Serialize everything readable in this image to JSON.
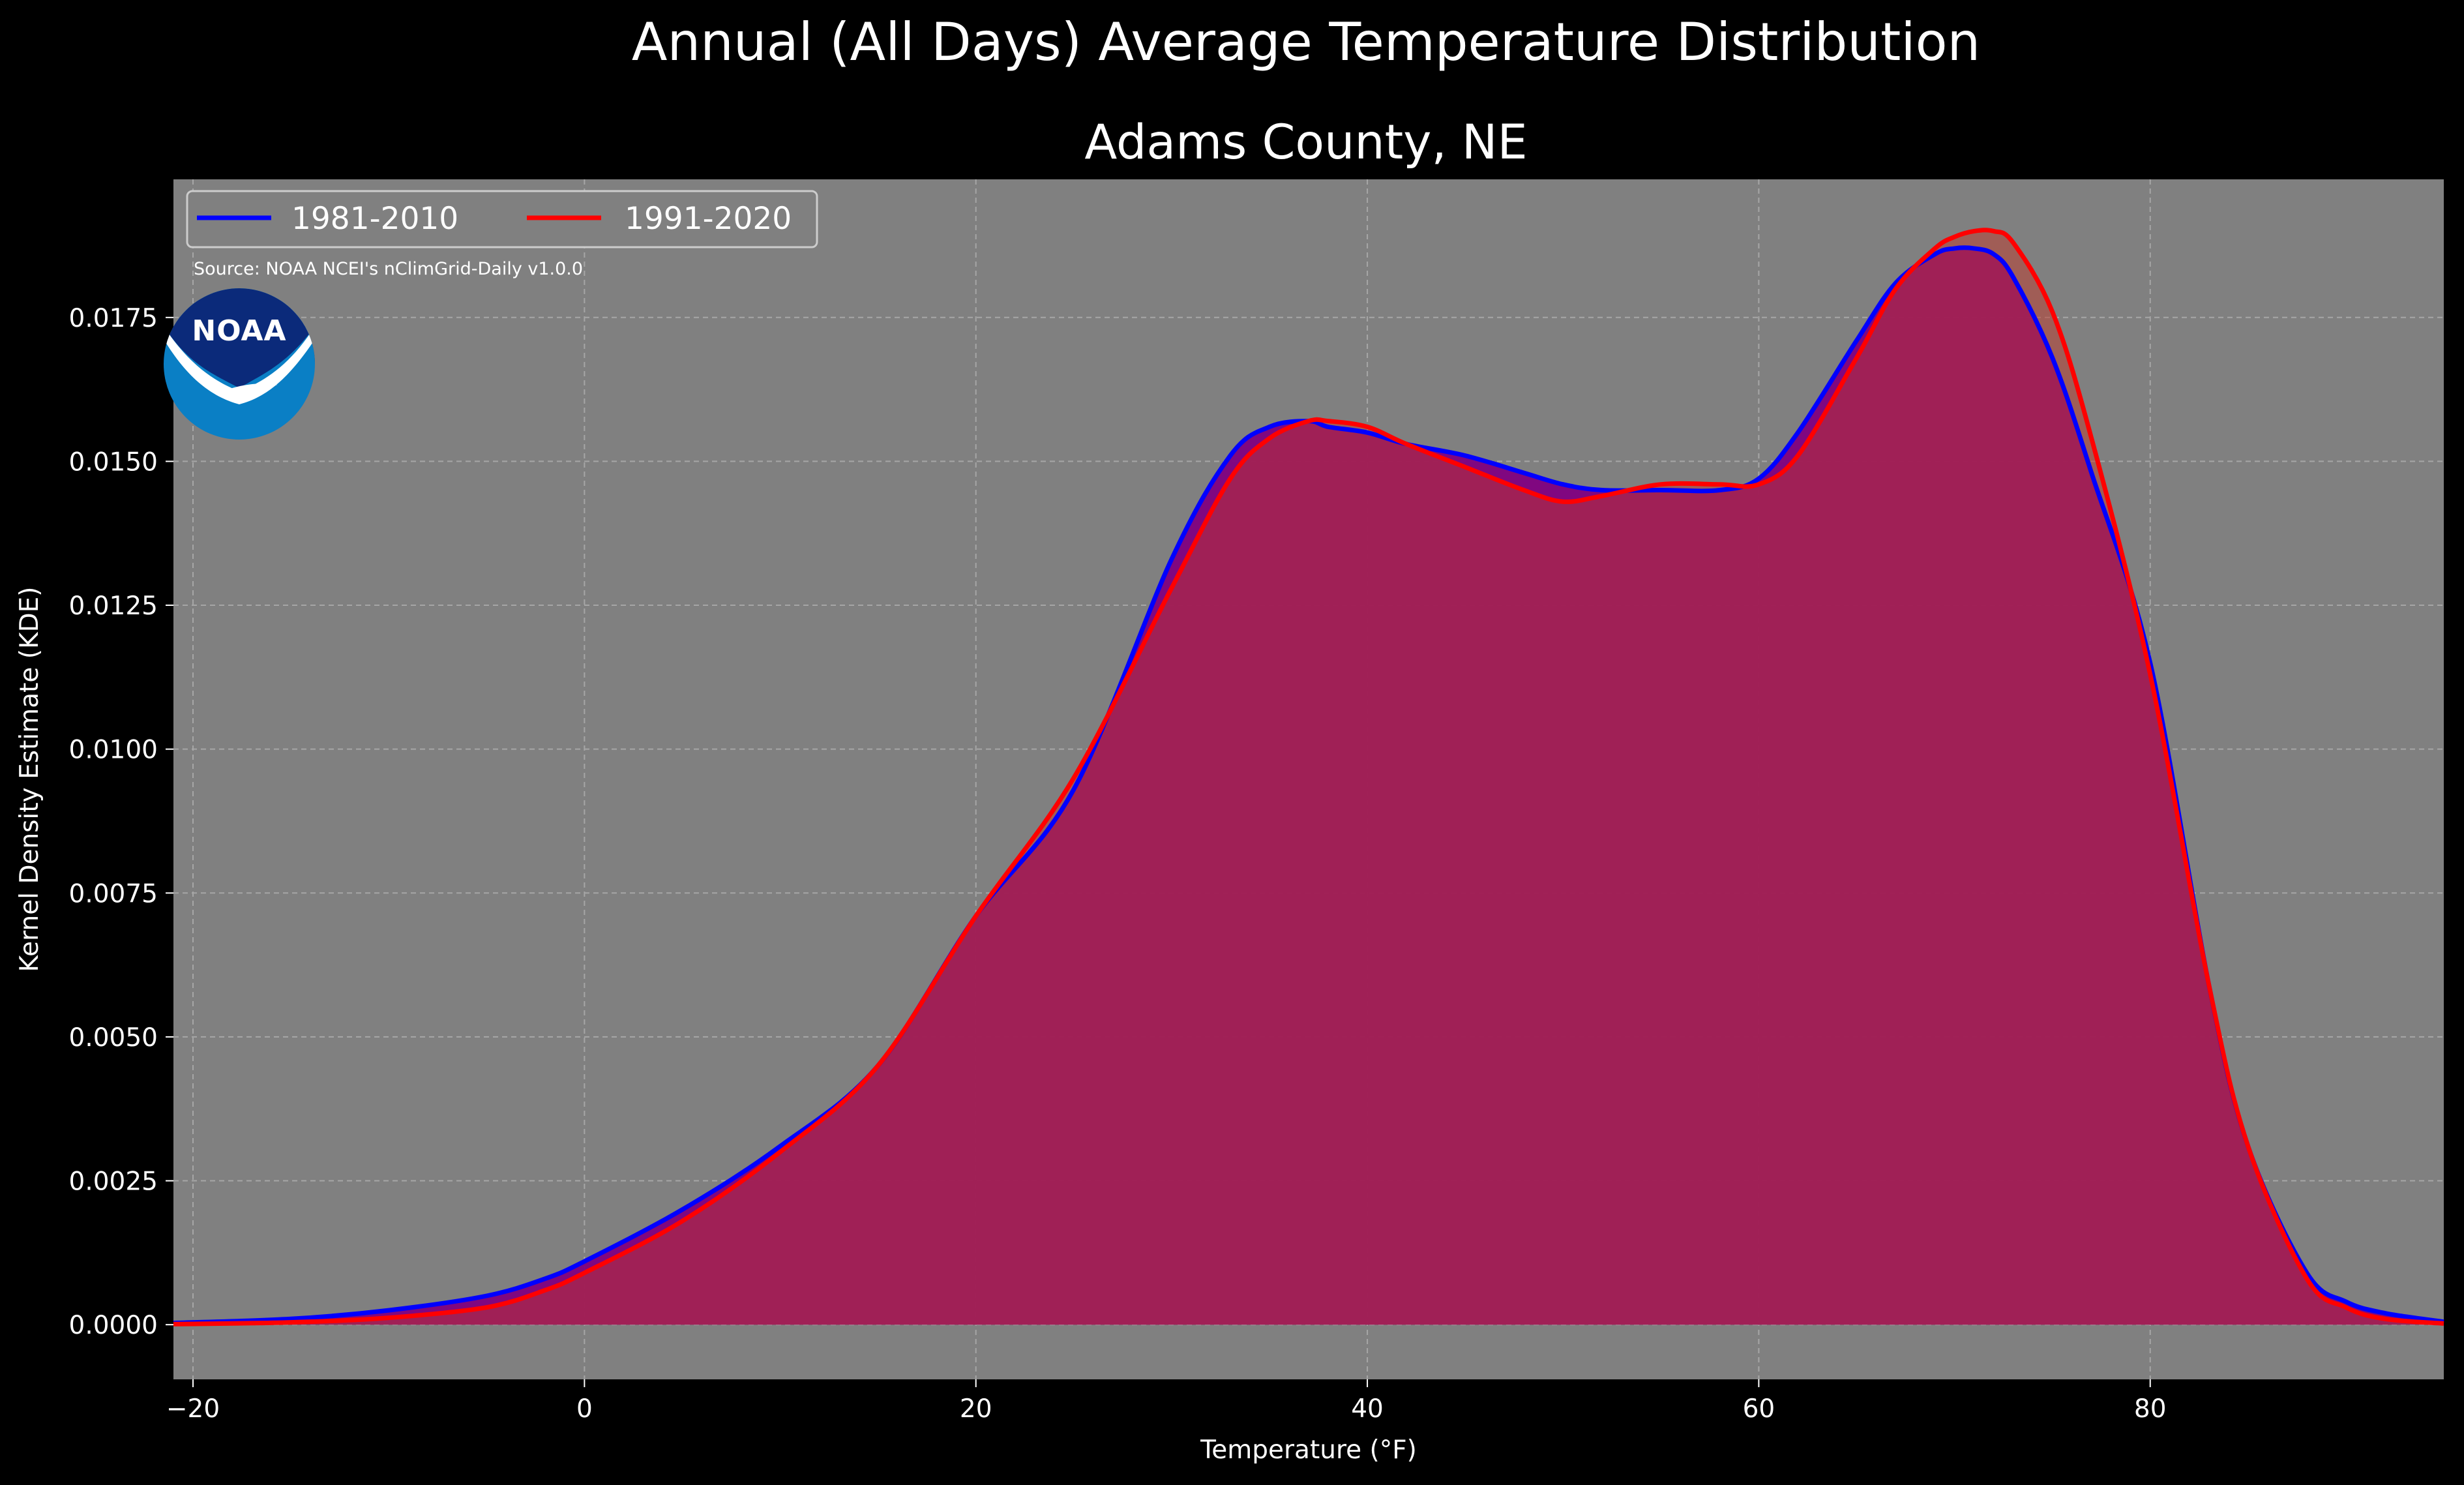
{
  "chart_data": {
    "type": "area",
    "title": "Annual (All Days) Average Temperature Distribution",
    "subtitle": "Adams County, NE",
    "xlabel": "Temperature ($^\\circ$F)",
    "xlabel_display": "Temperature (°F)",
    "ylabel": "Kernel Density Estimate (KDE)",
    "xlim": [
      -21,
      95
    ],
    "ylim": [
      -0.00095,
      0.0199
    ],
    "xticks": [
      -20,
      0,
      20,
      40,
      60,
      80
    ],
    "xtick_labels": [
      "−20",
      "0",
      "20",
      "40",
      "60",
      "80"
    ],
    "yticks": [
      0,
      0.0025,
      0.005,
      0.0075,
      0.01,
      0.0125,
      0.015,
      0.0175
    ],
    "ytick_labels": [
      "0.0000",
      "0.0025",
      "0.0050",
      "0.0075",
      "0.0100",
      "0.0125",
      "0.0150",
      "0.0175"
    ],
    "grid": true,
    "legend_position": "top-left",
    "annotation": "Source: NOAA NCEI's nClimGrid-Daily v1.0.0",
    "colors": {
      "figure_bg": "#000000",
      "plot_bg": "#808080",
      "grid": "#a6a6a6",
      "text": "#ffffff"
    },
    "x": [
      -21,
      -15,
      -10,
      -5,
      -2,
      0,
      5,
      10,
      15,
      20,
      25,
      30,
      33,
      35,
      37,
      38,
      40,
      42,
      45,
      48,
      50,
      52,
      55,
      58,
      60,
      62,
      65,
      67,
      69,
      70,
      71,
      72,
      73,
      75,
      77,
      80,
      83,
      85,
      88,
      90,
      92,
      95
    ],
    "series": [
      {
        "name": "1981-2010",
        "color": "#0000ff",
        "fill": "#800080",
        "values": [
          3e-05,
          0.0001,
          0.00025,
          0.0005,
          0.0008,
          0.0011,
          0.002,
          0.0031,
          0.0045,
          0.0071,
          0.0093,
          0.0133,
          0.0151,
          0.0156,
          0.0157,
          0.0156,
          0.0155,
          0.0153,
          0.0151,
          0.0148,
          0.0146,
          0.0145,
          0.0145,
          0.0145,
          0.0147,
          0.0155,
          0.0171,
          0.0181,
          0.0186,
          0.0187,
          0.0187,
          0.0186,
          0.0182,
          0.0168,
          0.0148,
          0.0115,
          0.0059,
          0.0031,
          0.0009,
          0.0004,
          0.0002,
          5e-05
        ]
      },
      {
        "name": "1991-2020",
        "color": "#ff0000",
        "fill": "#c0392b",
        "values": [
          1e-05,
          4e-05,
          0.00012,
          0.0003,
          0.0006,
          0.0009,
          0.0018,
          0.003,
          0.0045,
          0.0071,
          0.0095,
          0.0128,
          0.0147,
          0.0154,
          0.0157,
          0.0157,
          0.0156,
          0.0153,
          0.0149,
          0.0145,
          0.0143,
          0.0144,
          0.0146,
          0.0146,
          0.0146,
          0.0151,
          0.0168,
          0.018,
          0.0187,
          0.0189,
          0.019,
          0.019,
          0.0188,
          0.0176,
          0.0154,
          0.0113,
          0.0059,
          0.0031,
          0.0008,
          0.0003,
          0.0001,
          2e-05
        ]
      }
    ],
    "logo": {
      "name": "noaa-logo",
      "text": "NOAA"
    }
  }
}
